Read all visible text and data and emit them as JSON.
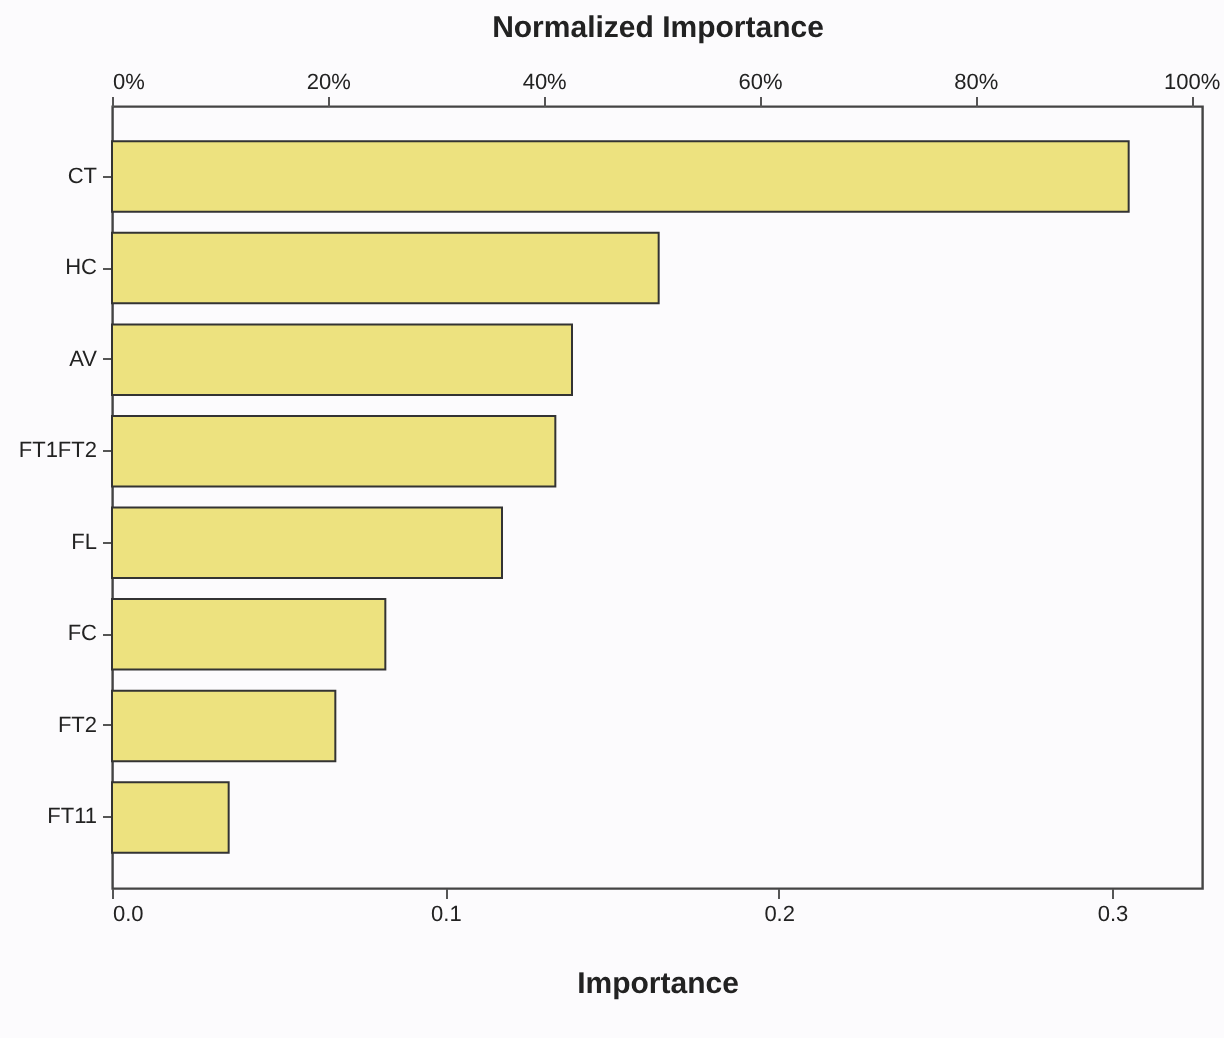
{
  "chart_data": {
    "type": "bar",
    "orientation": "horizontal",
    "xlabel": "Importance",
    "x2label": "Normalized Importance",
    "categories": [
      "CT",
      "HC",
      "AV",
      "FT1FT2",
      "FL",
      "FC",
      "FT2",
      "FT11"
    ],
    "values": [
      0.305,
      0.164,
      0.138,
      0.133,
      0.117,
      0.082,
      0.067,
      0.035
    ],
    "color": "#ede27f",
    "xlim": [
      0,
      0.327
    ],
    "xticks": [
      {
        "value": 0,
        "label": "0.0"
      },
      0.1,
      0.2,
      0.3
    ],
    "x2lim": [
      0,
      101
    ],
    "x2ticks": [
      {
        "value": 0,
        "label": "0%"
      },
      {
        "value": 20,
        "label": "20%"
      },
      {
        "value": 40,
        "label": "40%"
      },
      {
        "value": 60,
        "label": "60%"
      },
      {
        "value": 80,
        "label": "80%"
      },
      {
        "value": 100,
        "label": "100%"
      }
    ],
    "grid": false
  }
}
